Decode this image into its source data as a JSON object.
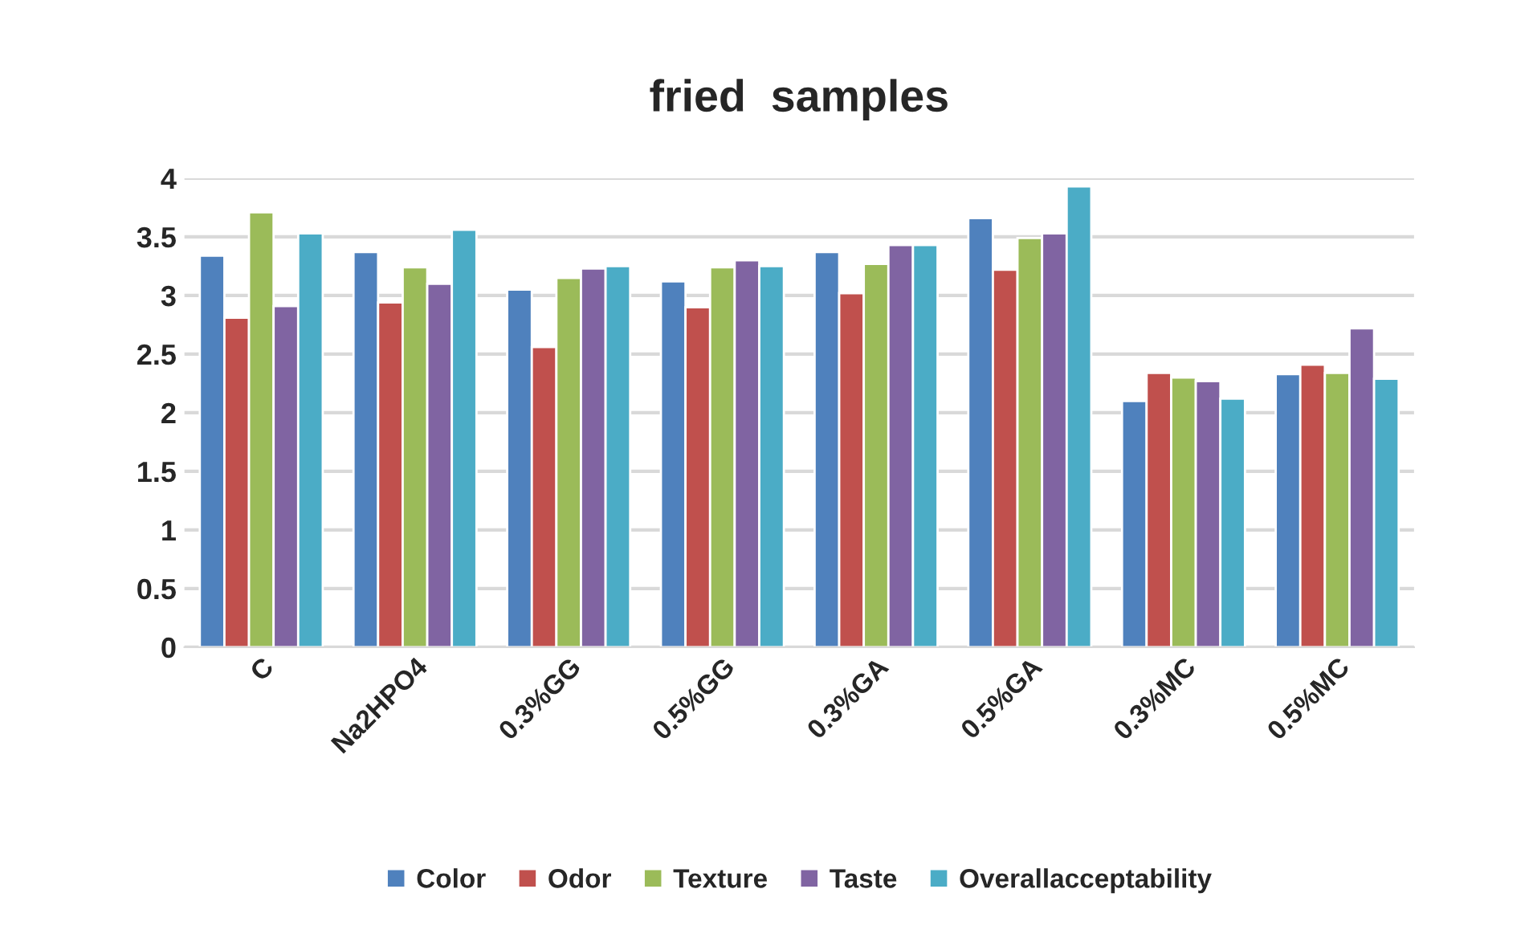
{
  "chart_data": {
    "type": "bar",
    "title": "fried  samples",
    "categories": [
      "C",
      "Na2HPO4",
      "0.3%GG",
      "0.5%GG",
      "0.3%GA",
      "0.5%GA",
      "0.3%MC",
      "0.5%MC"
    ],
    "series": [
      {
        "name": "Color",
        "color": "#4f81bd",
        "values": [
          3.34,
          3.37,
          3.05,
          3.12,
          3.37,
          3.66,
          2.1,
          2.33
        ]
      },
      {
        "name": "Odor",
        "color": "#c0504d",
        "values": [
          2.81,
          2.94,
          2.56,
          2.9,
          3.02,
          3.22,
          2.34,
          2.41
        ]
      },
      {
        "name": "Texture",
        "color": "#9bbb59",
        "values": [
          3.71,
          3.24,
          3.15,
          3.24,
          3.27,
          3.49,
          2.3,
          2.34
        ]
      },
      {
        "name": "Taste",
        "color": "#8064a2",
        "values": [
          2.91,
          3.1,
          3.23,
          3.3,
          3.43,
          3.53,
          2.27,
          2.72
        ]
      },
      {
        "name": "Overallacceptability",
        "color": "#4bacc6",
        "values": [
          3.53,
          3.56,
          3.25,
          3.25,
          3.43,
          3.93,
          2.12,
          2.29
        ]
      }
    ],
    "ylim": [
      0,
      4
    ],
    "yticks": [
      0,
      0.5,
      1,
      1.5,
      2,
      2.5,
      3,
      3.5,
      4
    ],
    "grid": "y",
    "legend": "bottom"
  }
}
